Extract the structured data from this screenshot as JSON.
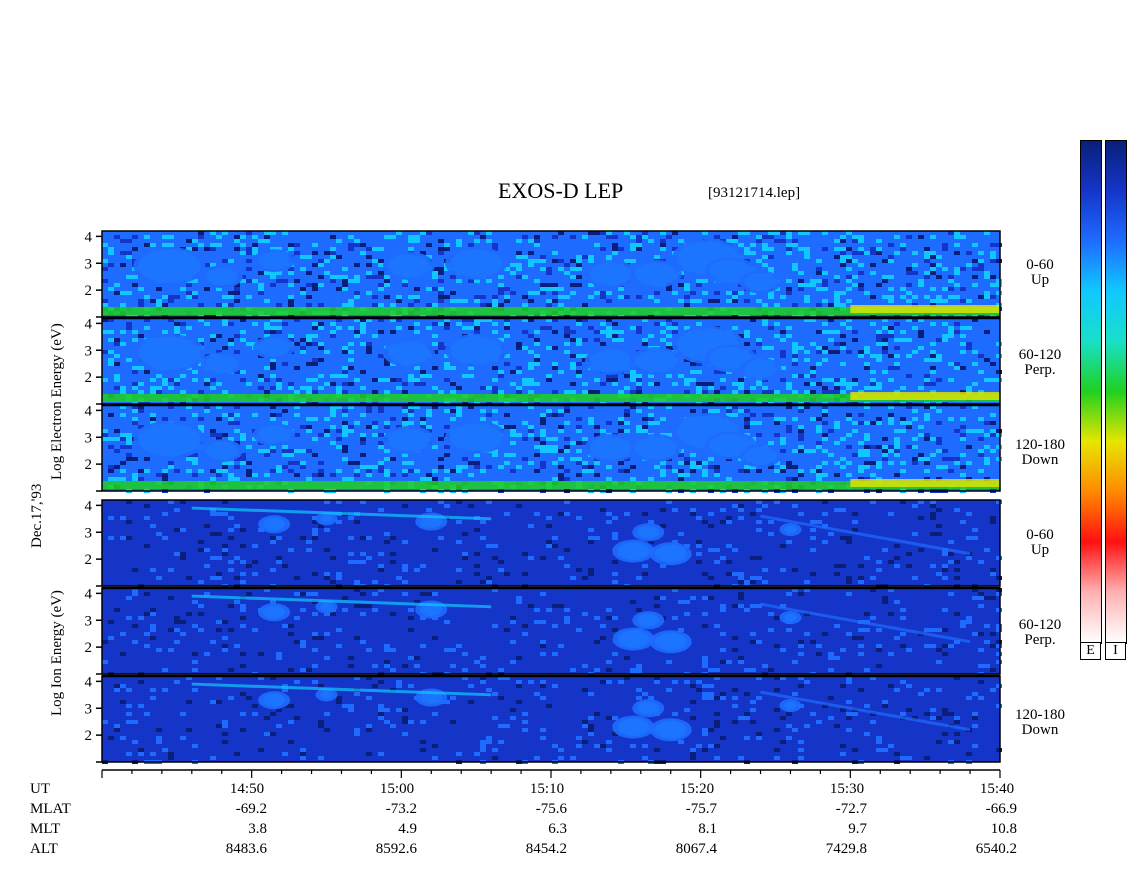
{
  "header": {
    "title": "EXOS-D LEP",
    "filename": "[93121714.lep]"
  },
  "date_label": "Dec.17,'93",
  "electron_axis": {
    "line1": "Log Electron Energy (eV)"
  },
  "ion_axis": {
    "line1": "Log Ion Energy (eV)"
  },
  "channels": {
    "e_up": [
      "0-60",
      "Up"
    ],
    "e_perp": [
      "60-120",
      "Perp."
    ],
    "e_down": [
      "120-180",
      "Down"
    ],
    "i_up": [
      "0-60",
      "Up"
    ],
    "i_perp": [
      "60-120",
      "Perp."
    ],
    "i_down": [
      "120-180",
      "Down"
    ]
  },
  "colorbar_tags": {
    "electron": "E",
    "ion": "I"
  },
  "orbit_table": {
    "row_labels": [
      "UT",
      "MLAT",
      "MLT",
      "ALT"
    ],
    "columns": [
      {
        "ut": "14:50",
        "mlat": "-69.2",
        "mlt": "3.8",
        "alt": "8483.6"
      },
      {
        "ut": "15:00",
        "mlat": "-73.2",
        "mlt": "4.9",
        "alt": "8592.6"
      },
      {
        "ut": "15:10",
        "mlat": "-75.6",
        "mlt": "6.3",
        "alt": "8454.2"
      },
      {
        "ut": "15:20",
        "mlat": "-75.7",
        "mlt": "8.1",
        "alt": "8067.4"
      },
      {
        "ut": "15:30",
        "mlat": "-72.7",
        "mlt": "9.7",
        "alt": "7429.8"
      },
      {
        "ut": "15:40",
        "mlat": "-66.9",
        "mlt": "10.8",
        "alt": "6540.2"
      }
    ]
  },
  "chart_data": {
    "type": "heatmap",
    "title": "EXOS-D LEP",
    "x": [
      "14:50",
      "15:00",
      "15:10",
      "15:20",
      "15:30",
      "15:40"
    ],
    "xlim": [
      "14:40",
      "15:40"
    ],
    "ylim": [
      1,
      4.2
    ],
    "yticks": [
      2,
      3,
      4
    ],
    "panels": [
      {
        "species": "Electron",
        "channel": "0-60 Up"
      },
      {
        "species": "Electron",
        "channel": "60-120 Perp."
      },
      {
        "species": "Electron",
        "channel": "120-180 Down"
      },
      {
        "species": "Ion",
        "channel": "0-60 Up"
      },
      {
        "species": "Ion",
        "channel": "60-120 Perp."
      },
      {
        "species": "Ion",
        "channel": "120-180 Down"
      }
    ],
    "colorscale": [
      "#0a1f7a",
      "#1535c8",
      "#1e6cff",
      "#10c8ff",
      "#18e0c8",
      "#20d020",
      "#e6e600",
      "#ff8a00",
      "#ff1010",
      "#ffb0b0",
      "#ffffff"
    ],
    "colorscale_colors": {
      "low": "#0a1f7a",
      "high": "#ffffff"
    }
  }
}
